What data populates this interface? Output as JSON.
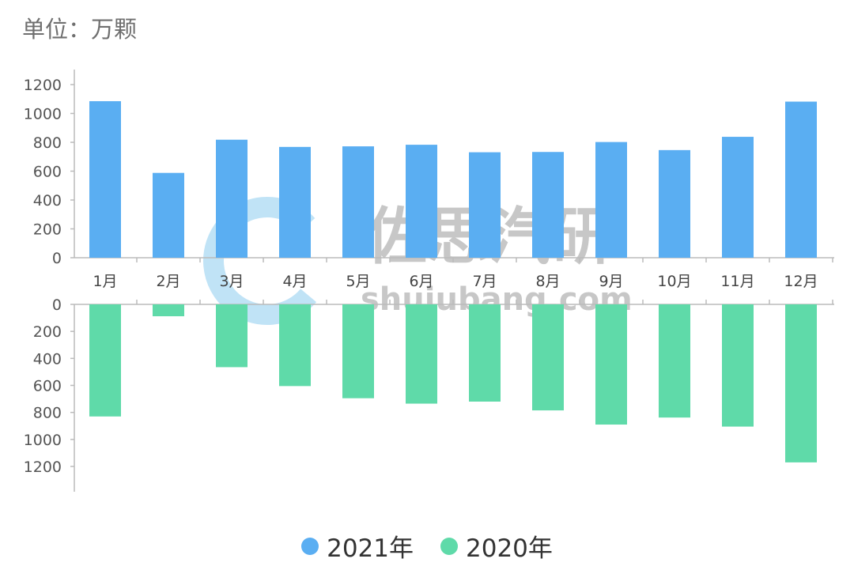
{
  "unit_label": "单位：万颗",
  "watermark": {
    "title": "佐思汽研",
    "site": "shujubang.com"
  },
  "colors": {
    "series_2021": "#5aaef2",
    "series_2020": "#5fdaa9",
    "axis": "#bbbbbb"
  },
  "chart_data": {
    "type": "bar",
    "categories": [
      "1月",
      "2月",
      "3月",
      "4月",
      "5月",
      "6月",
      "7月",
      "8月",
      "9月",
      "10月",
      "11月",
      "12月"
    ],
    "series": [
      {
        "name": "2021年",
        "values": [
          1085,
          588,
          818,
          768,
          772,
          783,
          731,
          733,
          802,
          746,
          838,
          1082
        ]
      },
      {
        "name": "2020年",
        "values": [
          830,
          88,
          465,
          605,
          695,
          735,
          720,
          785,
          890,
          838,
          905,
          1170
        ]
      }
    ],
    "upper_axis": {
      "ylim": [
        0,
        1200
      ],
      "ticks": [
        0,
        200,
        400,
        600,
        800,
        1000,
        1200
      ]
    },
    "lower_axis": {
      "ylim": [
        0,
        1200
      ],
      "ticks": [
        0,
        200,
        400,
        600,
        800,
        1000,
        1200
      ],
      "direction": "down"
    },
    "legend_position": "bottom-center",
    "grid": false
  }
}
